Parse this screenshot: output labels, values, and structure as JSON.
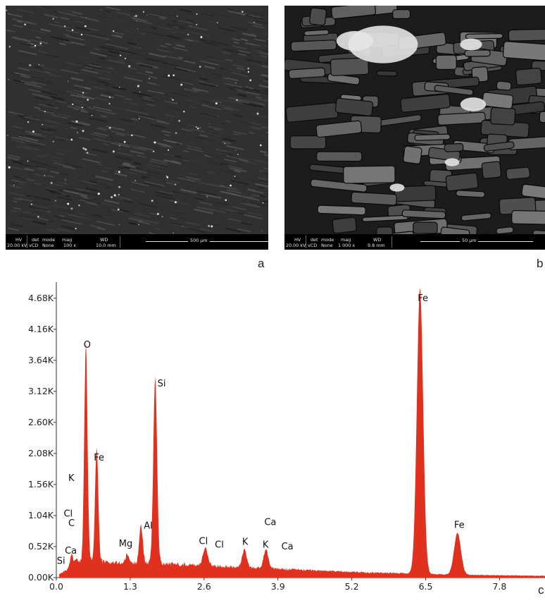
{
  "panels": [
    {
      "letter": "a",
      "databar": {
        "hv_header": "HV",
        "hv_value": "20.00 kV",
        "det_header": "det",
        "det_value": "vCD",
        "mode_header": "mode",
        "mode_value": "None",
        "mag_header": "mag",
        "mag_value": "100 x",
        "wd_header": "WD",
        "wd_value": "10.0 mm",
        "scale_label": "500 µm"
      }
    },
    {
      "letter": "b",
      "databar": {
        "hv_header": "HV",
        "hv_value": "20.00 kV",
        "det_header": "det",
        "det_value": "vCD",
        "mode_header": "mode",
        "mode_value": "None",
        "mag_header": "mag",
        "mag_value": "1 000 x",
        "wd_header": "WD",
        "wd_value": "9.8 mm",
        "scale_label": "50 µm"
      }
    }
  ],
  "spectrum_letter": "c",
  "colors": {
    "spectrum_fill": "#e0301e",
    "axis": "#333333",
    "sem_background": "#2a2a2a"
  },
  "chart_data": {
    "type": "area",
    "title": "",
    "xlabel": "",
    "ylabel": "",
    "xlim": [
      0.0,
      8.6
    ],
    "ylim": [
      0,
      4.95
    ],
    "x_ticks": [
      {
        "value": 0.0,
        "label": "0.0"
      },
      {
        "value": 1.3,
        "label": "1.3"
      },
      {
        "value": 2.6,
        "label": "2.6"
      },
      {
        "value": 3.9,
        "label": "3.9"
      },
      {
        "value": 5.2,
        "label": "5.2"
      },
      {
        "value": 6.5,
        "label": "6.5"
      },
      {
        "value": 7.8,
        "label": "7.8"
      }
    ],
    "y_ticks": [
      {
        "value": 0.0,
        "label": "0.00K"
      },
      {
        "value": 0.52,
        "label": "0.52K"
      },
      {
        "value": 1.04,
        "label": "1.04K"
      },
      {
        "value": 1.56,
        "label": "1.56K"
      },
      {
        "value": 2.08,
        "label": "2.08K"
      },
      {
        "value": 2.6,
        "label": "2.60K"
      },
      {
        "value": 3.12,
        "label": "3.12K"
      },
      {
        "value": 3.64,
        "label": "3.64K"
      },
      {
        "value": 4.16,
        "label": "4.16K"
      },
      {
        "value": 4.68,
        "label": "4.68K"
      }
    ],
    "baseline": [
      [
        0.05,
        0.06
      ],
      [
        0.5,
        0.3
      ],
      [
        1.0,
        0.25
      ],
      [
        1.8,
        0.24
      ],
      [
        2.6,
        0.21
      ],
      [
        3.4,
        0.17
      ],
      [
        3.9,
        0.15
      ],
      [
        4.6,
        0.12
      ],
      [
        5.4,
        0.09
      ],
      [
        6.2,
        0.07
      ],
      [
        7.0,
        0.05
      ],
      [
        7.8,
        0.04
      ],
      [
        8.6,
        0.03
      ]
    ],
    "peaks": [
      {
        "energy": 0.27,
        "height": 0.22,
        "width": 0.025
      },
      {
        "energy": 0.35,
        "height": 0.1,
        "width": 0.025
      },
      {
        "energy": 0.52,
        "height": 3.62,
        "width": 0.028
      },
      {
        "energy": 0.71,
        "height": 1.92,
        "width": 0.028
      },
      {
        "energy": 1.25,
        "height": 0.14,
        "width": 0.03
      },
      {
        "energy": 1.49,
        "height": 0.62,
        "width": 0.032
      },
      {
        "energy": 1.74,
        "height": 3.12,
        "width": 0.033
      },
      {
        "energy": 2.62,
        "height": 0.3,
        "width": 0.04
      },
      {
        "energy": 3.31,
        "height": 0.29,
        "width": 0.04
      },
      {
        "energy": 3.69,
        "height": 0.32,
        "width": 0.04
      },
      {
        "energy": 6.4,
        "height": 4.78,
        "width": 0.055
      },
      {
        "energy": 7.06,
        "height": 0.7,
        "width": 0.06
      }
    ],
    "peak_labels": [
      {
        "text": "O",
        "energy": 0.48,
        "counts": 3.85
      },
      {
        "text": "Si",
        "energy": 1.78,
        "counts": 3.2
      },
      {
        "text": "Fe",
        "energy": 0.66,
        "counts": 1.96
      },
      {
        "text": "K",
        "energy": 0.21,
        "counts": 1.62
      },
      {
        "text": "Cl",
        "energy": 0.13,
        "counts": 1.02
      },
      {
        "text": "C",
        "energy": 0.21,
        "counts": 0.86
      },
      {
        "text": "Al",
        "energy": 1.54,
        "counts": 0.82
      },
      {
        "text": "Mg",
        "energy": 1.1,
        "counts": 0.52
      },
      {
        "text": "Si",
        "energy": 0.01,
        "counts": 0.23
      },
      {
        "text": "Ca",
        "energy": 0.15,
        "counts": 0.4
      },
      {
        "text": "Cl",
        "energy": 2.51,
        "counts": 0.56
      },
      {
        "text": "Cl",
        "energy": 2.79,
        "counts": 0.5
      },
      {
        "text": "K",
        "energy": 3.27,
        "counts": 0.55
      },
      {
        "text": "K",
        "energy": 3.63,
        "counts": 0.5
      },
      {
        "text": "Ca",
        "energy": 3.66,
        "counts": 0.88
      },
      {
        "text": "Ca",
        "energy": 3.96,
        "counts": 0.47
      },
      {
        "text": "Fe",
        "energy": 6.36,
        "counts": 4.63
      },
      {
        "text": "Fe",
        "energy": 7.0,
        "counts": 0.83
      }
    ]
  }
}
